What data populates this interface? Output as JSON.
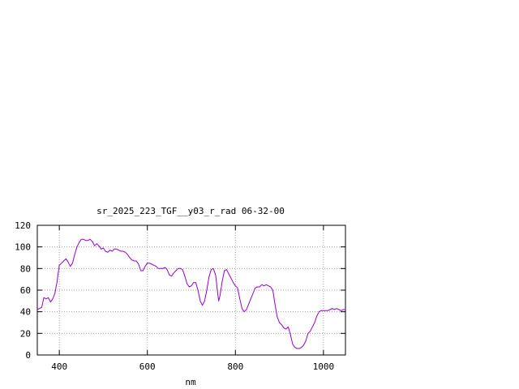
{
  "chart_data": {
    "type": "line",
    "title": "sr_2025_223_TGF__y03_r_rad 06-32-00",
    "xlabel": "nm",
    "ylabel": "",
    "xlim": [
      350,
      1050
    ],
    "ylim": [
      0,
      120
    ],
    "x_ticks": [
      400,
      600,
      800,
      1000
    ],
    "y_ticks": [
      0,
      20,
      40,
      60,
      80,
      100,
      120
    ],
    "grid": true,
    "legend": "none",
    "series": [
      {
        "color": "#9400d3",
        "points": [
          [
            350,
            42
          ],
          [
            360,
            44
          ],
          [
            365,
            53
          ],
          [
            370,
            52
          ],
          [
            375,
            53
          ],
          [
            380,
            49
          ],
          [
            385,
            52
          ],
          [
            390,
            57
          ],
          [
            395,
            68
          ],
          [
            400,
            83
          ],
          [
            410,
            87
          ],
          [
            415,
            89
          ],
          [
            420,
            86
          ],
          [
            425,
            82
          ],
          [
            430,
            85
          ],
          [
            435,
            93
          ],
          [
            440,
            100
          ],
          [
            445,
            104
          ],
          [
            450,
            107
          ],
          [
            455,
            107
          ],
          [
            460,
            106
          ],
          [
            465,
            106
          ],
          [
            470,
            107
          ],
          [
            475,
            105
          ],
          [
            480,
            101
          ],
          [
            485,
            103
          ],
          [
            490,
            101
          ],
          [
            495,
            98
          ],
          [
            500,
            99
          ],
          [
            505,
            96
          ],
          [
            510,
            95
          ],
          [
            515,
            97
          ],
          [
            520,
            96
          ],
          [
            525,
            98
          ],
          [
            530,
            98
          ],
          [
            535,
            97
          ],
          [
            540,
            96
          ],
          [
            545,
            96
          ],
          [
            550,
            95
          ],
          [
            555,
            93
          ],
          [
            560,
            90
          ],
          [
            565,
            88
          ],
          [
            570,
            87
          ],
          [
            575,
            87
          ],
          [
            580,
            84
          ],
          [
            585,
            78
          ],
          [
            590,
            78
          ],
          [
            595,
            82
          ],
          [
            600,
            85
          ],
          [
            605,
            85
          ],
          [
            610,
            84
          ],
          [
            615,
            83
          ],
          [
            620,
            82
          ],
          [
            625,
            80
          ],
          [
            630,
            80
          ],
          [
            635,
            80
          ],
          [
            640,
            81
          ],
          [
            645,
            79
          ],
          [
            650,
            74
          ],
          [
            655,
            73
          ],
          [
            660,
            76
          ],
          [
            665,
            78
          ],
          [
            670,
            80
          ],
          [
            675,
            80
          ],
          [
            680,
            79
          ],
          [
            685,
            73
          ],
          [
            690,
            66
          ],
          [
            695,
            63
          ],
          [
            700,
            64
          ],
          [
            705,
            67
          ],
          [
            710,
            67
          ],
          [
            715,
            60
          ],
          [
            720,
            50
          ],
          [
            725,
            46
          ],
          [
            730,
            50
          ],
          [
            735,
            60
          ],
          [
            740,
            72
          ],
          [
            745,
            79
          ],
          [
            750,
            80
          ],
          [
            755,
            74
          ],
          [
            760,
            56
          ],
          [
            762,
            50
          ],
          [
            765,
            55
          ],
          [
            770,
            68
          ],
          [
            775,
            78
          ],
          [
            780,
            79
          ],
          [
            785,
            75
          ],
          [
            790,
            71
          ],
          [
            795,
            67
          ],
          [
            800,
            64
          ],
          [
            805,
            62
          ],
          [
            810,
            52
          ],
          [
            815,
            43
          ],
          [
            820,
            40
          ],
          [
            825,
            42
          ],
          [
            830,
            47
          ],
          [
            835,
            52
          ],
          [
            840,
            57
          ],
          [
            845,
            62
          ],
          [
            850,
            63
          ],
          [
            855,
            63
          ],
          [
            860,
            65
          ],
          [
            865,
            64
          ],
          [
            870,
            65
          ],
          [
            875,
            64
          ],
          [
            880,
            63
          ],
          [
            885,
            60
          ],
          [
            890,
            47
          ],
          [
            895,
            35
          ],
          [
            900,
            30
          ],
          [
            905,
            28
          ],
          [
            910,
            25
          ],
          [
            915,
            24
          ],
          [
            920,
            26
          ],
          [
            925,
            19
          ],
          [
            930,
            10
          ],
          [
            935,
            7
          ],
          [
            940,
            6
          ],
          [
            945,
            6
          ],
          [
            950,
            7
          ],
          [
            955,
            9
          ],
          [
            960,
            13
          ],
          [
            965,
            20
          ],
          [
            970,
            22
          ],
          [
            975,
            26
          ],
          [
            980,
            30
          ],
          [
            985,
            36
          ],
          [
            990,
            40
          ],
          [
            995,
            41
          ],
          [
            1000,
            41
          ],
          [
            1005,
            41
          ],
          [
            1010,
            41
          ],
          [
            1015,
            42
          ],
          [
            1020,
            43
          ],
          [
            1025,
            42
          ],
          [
            1030,
            43
          ],
          [
            1035,
            42
          ],
          [
            1040,
            41
          ],
          [
            1045,
            42
          ],
          [
            1050,
            42
          ]
        ]
      }
    ]
  }
}
